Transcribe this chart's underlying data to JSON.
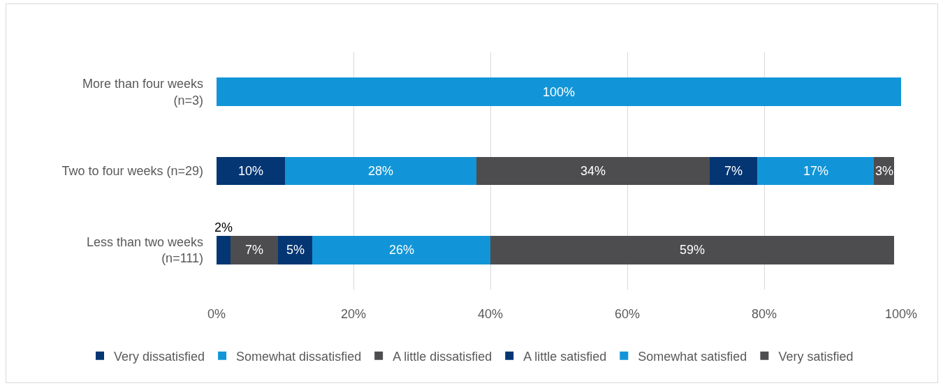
{
  "chart_data": {
    "type": "bar",
    "orientation": "horizontal",
    "stacked": true,
    "categories": [
      "More than four weeks\n(n=3)",
      "Two to four weeks (n=29)",
      "Less than two weeks\n(n=111)"
    ],
    "series": [
      {
        "name": "Very dissatisfied",
        "color": "#043673",
        "values": [
          null,
          10,
          2
        ],
        "value_labels": [
          null,
          "10%",
          "2%"
        ]
      },
      {
        "name": "Somewhat dissatisfied",
        "color": "#1295d8",
        "values": [
          null,
          28,
          null
        ],
        "value_labels": [
          null,
          "28%",
          null
        ]
      },
      {
        "name": "A little dissatisfied",
        "color": "#4d4d4f",
        "values": [
          null,
          34,
          7
        ],
        "value_labels": [
          null,
          "34%",
          "7%"
        ]
      },
      {
        "name": "A little satisfied",
        "color": "#043673",
        "values": [
          null,
          7,
          5
        ],
        "value_labels": [
          null,
          "7%",
          "5%"
        ]
      },
      {
        "name": "Somewhat satisfied",
        "color": "#1295d8",
        "values": [
          100,
          17,
          26
        ],
        "value_labels": [
          "100%",
          "17%",
          "26%"
        ]
      },
      {
        "name": "Very satisfied",
        "color": "#4d4d4f",
        "values": [
          null,
          3,
          59
        ],
        "value_labels": [
          null,
          "3%",
          "59%"
        ]
      }
    ],
    "xlim": [
      0,
      100
    ],
    "xticks": [
      {
        "value": 0,
        "label": "0%"
      },
      {
        "value": 20,
        "label": "20%"
      },
      {
        "value": 40,
        "label": "40%"
      },
      {
        "value": 60,
        "label": "60%"
      },
      {
        "value": 80,
        "label": "80%"
      },
      {
        "value": 100,
        "label": "100%"
      }
    ],
    "grid": "x",
    "legend": "bottom"
  }
}
